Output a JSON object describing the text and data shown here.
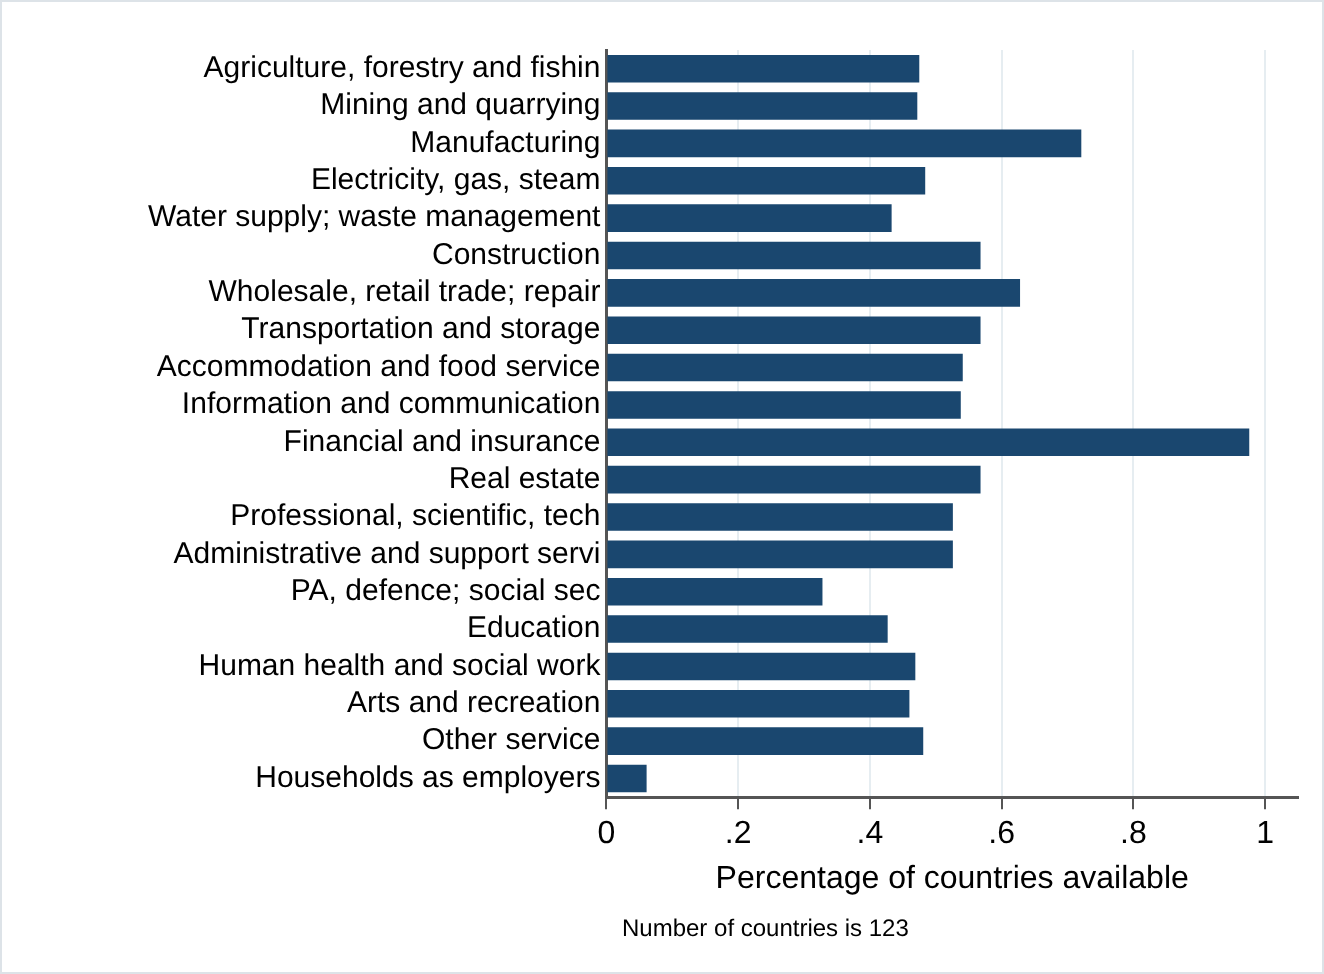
{
  "chart_data": {
    "type": "bar",
    "orientation": "horizontal",
    "xlabel": "Percentage of countries available",
    "categories": [
      "Agriculture, forestry and fishin",
      "Mining and quarrying",
      "Manufacturing",
      "Electricity, gas, steam",
      "Water supply; waste management",
      "Construction",
      "Wholesale, retail trade; repair",
      "Transportation and storage",
      "Accommodation and food service",
      "Information and communication",
      "Financial and insurance",
      "Real estate",
      "Professional, scientific, tech",
      "Administrative and support servi",
      "PA, defence; social sec",
      "Education",
      "Human health and social work",
      "Arts and recreation",
      "Other service",
      "Households as employers"
    ],
    "values": [
      0.475,
      0.472,
      0.721,
      0.484,
      0.433,
      0.568,
      0.628,
      0.568,
      0.541,
      0.538,
      0.976,
      0.568,
      0.526,
      0.526,
      0.328,
      0.427,
      0.469,
      0.46,
      0.481,
      0.061
    ],
    "color": "#1a476f",
    "xlim": [
      0,
      1.05
    ],
    "xticks": [
      0,
      {
        "value": 0.2,
        "label": ".2"
      },
      {
        "value": 0.4,
        "label": ".4"
      },
      {
        "value": 0.6,
        "label": ".6"
      },
      {
        "value": 0.8,
        "label": ".8"
      },
      1
    ],
    "grid": "x",
    "legend": false,
    "annotations": [
      "Number of countries is 123"
    ]
  }
}
